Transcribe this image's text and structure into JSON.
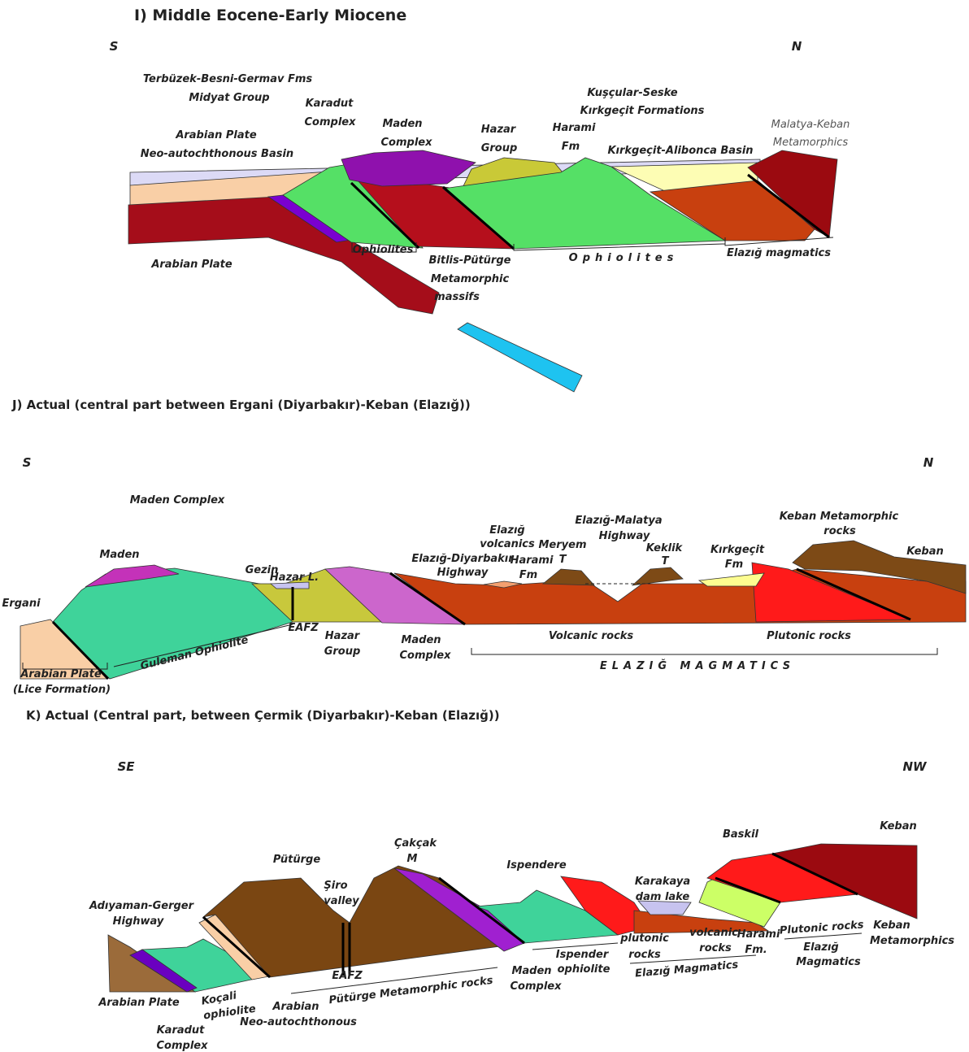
{
  "panel_i": {
    "title": "I) Middle Eocene-Early Miocene",
    "left": "S",
    "right": "N",
    "labels": [
      "Terbüzek-Besni-Germav Fms",
      "Midyat Group",
      "Arabian Plate",
      "Neo-autochthonous Basin",
      "Karadut",
      "Complex",
      "Maden",
      "Complex",
      "Hazar",
      "Group",
      "Harami",
      "Fm",
      "Kuşçular-Seske",
      "Kırkgeçit Formations",
      "Kırkgeçit-Alibonca Basin",
      "Malatya-Keban",
      "Metamorphics",
      "Arabian Plate",
      "Ophiolites",
      "Bitlis-Pütürge",
      "Metamorphic",
      "massifs",
      "Ophiolites",
      "Elazığ magmatics"
    ]
  },
  "panel_j": {
    "title": "J) Actual (central part between Ergani (Diyarbakır)-Keban (Elazığ))",
    "left": "S",
    "right": "N",
    "labels": [
      "Maden Complex",
      "Maden",
      "Ergani",
      "Gezin",
      "Hazar L.",
      "EAFZ",
      "Hazar",
      "Group",
      "Maden",
      "Complex",
      "Arabian Plate",
      "(Lice Formation)",
      "Guleman Ophiolite",
      "Elazığ",
      "volcanics",
      "Elazığ-Diyarbakır",
      "Highway",
      "Harami",
      "Fm",
      "Meryem",
      "T",
      "Elazığ-Malatya",
      "Highway",
      "Keklik",
      "T",
      "Kırkgeçit",
      "Fm",
      "Keban Metamorphic",
      "rocks",
      "Keban",
      "Volcanic rocks",
      "Plutonic rocks",
      "ELAZIĞ MAGMATICS"
    ]
  },
  "panel_k": {
    "title": "K) Actual (Central part, between Çermik (Diyarbakır)-Keban (Elazığ))",
    "left": "SE",
    "right": "NW",
    "labels": [
      "Adıyaman-Gerger",
      "Highway",
      "Pütürge",
      "Şiro",
      "valley",
      "Çakçak",
      "M",
      "Ispendere",
      "Karakaya",
      "dam lake",
      "Baskil",
      "Keban",
      "Arabian Plate",
      "Karadut",
      "Complex",
      "Koçali",
      "ophiolite",
      "Arabian",
      "Neo-autochthonous",
      "EAFZ",
      "Pütürge Metamorphic rocks",
      "Maden",
      "Complex",
      "Ispender",
      "ophiolite",
      "plutonic",
      "rocks",
      "volcanic",
      "rocks",
      "Harami",
      "Fm.",
      "Elazığ Magmatics",
      "Plutonic rocks",
      "Elazığ",
      "Magmatics",
      "Keban",
      "Metamorphics"
    ]
  }
}
